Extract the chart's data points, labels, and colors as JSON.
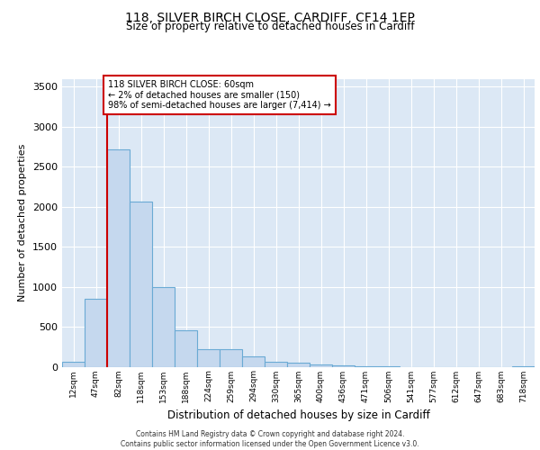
{
  "title": "118, SILVER BIRCH CLOSE, CARDIFF, CF14 1EP",
  "subtitle": "Size of property relative to detached houses in Cardiff",
  "xlabel": "Distribution of detached houses by size in Cardiff",
  "ylabel": "Number of detached properties",
  "bar_labels": [
    "12sqm",
    "47sqm",
    "82sqm",
    "118sqm",
    "153sqm",
    "188sqm",
    "224sqm",
    "259sqm",
    "294sqm",
    "330sqm",
    "365sqm",
    "400sqm",
    "436sqm",
    "471sqm",
    "506sqm",
    "541sqm",
    "577sqm",
    "612sqm",
    "647sqm",
    "683sqm",
    "718sqm"
  ],
  "bar_values": [
    60,
    850,
    2720,
    2060,
    1000,
    460,
    220,
    220,
    130,
    60,
    55,
    30,
    20,
    5,
    5,
    0,
    0,
    0,
    0,
    0,
    5
  ],
  "bar_color": "#c5d8ee",
  "bar_edge_color": "#6aaad4",
  "background_color": "#dce8f5",
  "grid_color": "#ffffff",
  "vline_color": "#cc0000",
  "vline_x": 1.5,
  "annotation_text": "118 SILVER BIRCH CLOSE: 60sqm\n← 2% of detached houses are smaller (150)\n98% of semi-detached houses are larger (7,414) →",
  "annotation_box_color": "#cc0000",
  "annotation_fill": "#ffffff",
  "ylim": [
    0,
    3600
  ],
  "yticks": [
    0,
    500,
    1000,
    1500,
    2000,
    2500,
    3000,
    3500
  ],
  "footer_line1": "Contains HM Land Registry data © Crown copyright and database right 2024.",
  "footer_line2": "Contains public sector information licensed under the Open Government Licence v3.0."
}
